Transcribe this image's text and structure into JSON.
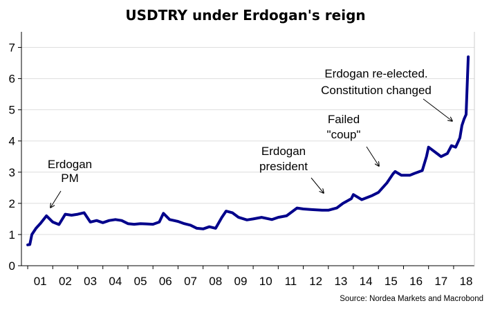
{
  "chart_data": {
    "type": "line",
    "title": "USDTRY under Erdogan's reign",
    "xlabel": "",
    "ylabel": "",
    "ylim": [
      0,
      7.5
    ],
    "yticks": [
      "0",
      "1",
      "2",
      "3",
      "4",
      "5",
      "6",
      "7"
    ],
    "x_tick_labels": [
      "01",
      "02",
      "03",
      "04",
      "05",
      "06",
      "07",
      "08",
      "09",
      "10",
      "11",
      "12",
      "13",
      "14",
      "15",
      "16",
      "17",
      "18"
    ],
    "grid": "horizontal",
    "line_color": "#00008b",
    "series": [
      {
        "x": [
          "2001-01",
          "2001-02",
          "2001-03",
          "2001-05",
          "2001-07",
          "2001-10",
          "2002-01",
          "2002-04",
          "2002-07",
          "2002-10",
          "2003-01",
          "2003-04",
          "2003-07",
          "2003-10",
          "2004-01",
          "2004-04",
          "2004-07",
          "2004-10",
          "2005-01",
          "2005-04",
          "2005-07",
          "2005-10",
          "2006-01",
          "2006-04",
          "2006-06",
          "2006-09",
          "2007-01",
          "2007-04",
          "2007-07",
          "2007-10",
          "2008-01",
          "2008-04",
          "2008-07",
          "2008-10",
          "2008-12",
          "2009-03",
          "2009-06",
          "2009-10",
          "2010-01",
          "2010-05",
          "2010-10",
          "2011-01",
          "2011-05",
          "2011-08",
          "2011-10",
          "2012-01",
          "2012-05",
          "2012-10",
          "2013-01",
          "2013-05",
          "2013-08",
          "2013-12",
          "2014-01",
          "2014-05",
          "2014-10",
          "2015-01",
          "2015-05",
          "2015-08",
          "2015-09",
          "2015-12",
          "2016-04",
          "2016-07",
          "2016-10",
          "2016-12",
          "2017-01",
          "2017-04",
          "2017-07",
          "2017-10",
          "2017-12",
          "2018-02",
          "2018-04",
          "2018-05",
          "2018-06",
          "2018-07",
          "2018-08"
        ],
        "values": [
          0.67,
          0.68,
          1.0,
          1.2,
          1.35,
          1.6,
          1.4,
          1.32,
          1.65,
          1.62,
          1.65,
          1.7,
          1.4,
          1.45,
          1.38,
          1.45,
          1.48,
          1.45,
          1.35,
          1.33,
          1.35,
          1.34,
          1.33,
          1.4,
          1.68,
          1.48,
          1.42,
          1.35,
          1.3,
          1.2,
          1.18,
          1.25,
          1.2,
          1.55,
          1.75,
          1.7,
          1.55,
          1.47,
          1.5,
          1.55,
          1.48,
          1.55,
          1.6,
          1.75,
          1.85,
          1.82,
          1.8,
          1.78,
          1.78,
          1.85,
          2.0,
          2.15,
          2.28,
          2.12,
          2.25,
          2.35,
          2.65,
          2.95,
          3.02,
          2.9,
          2.9,
          2.98,
          3.05,
          3.5,
          3.8,
          3.65,
          3.5,
          3.6,
          3.85,
          3.8,
          4.1,
          4.5,
          4.7,
          4.85,
          6.7
        ]
      }
    ],
    "annotations": [
      {
        "lines": [
          "Erdogan",
          "PM"
        ]
      },
      {
        "lines": [
          "Erdogan",
          "president"
        ]
      },
      {
        "lines": [
          "Failed",
          "\"coup\""
        ]
      },
      {
        "lines": [
          "Erdogan re-elected.",
          "Constitution changed"
        ]
      }
    ],
    "source": "Source: Nordea Markets and Macrobond"
  }
}
